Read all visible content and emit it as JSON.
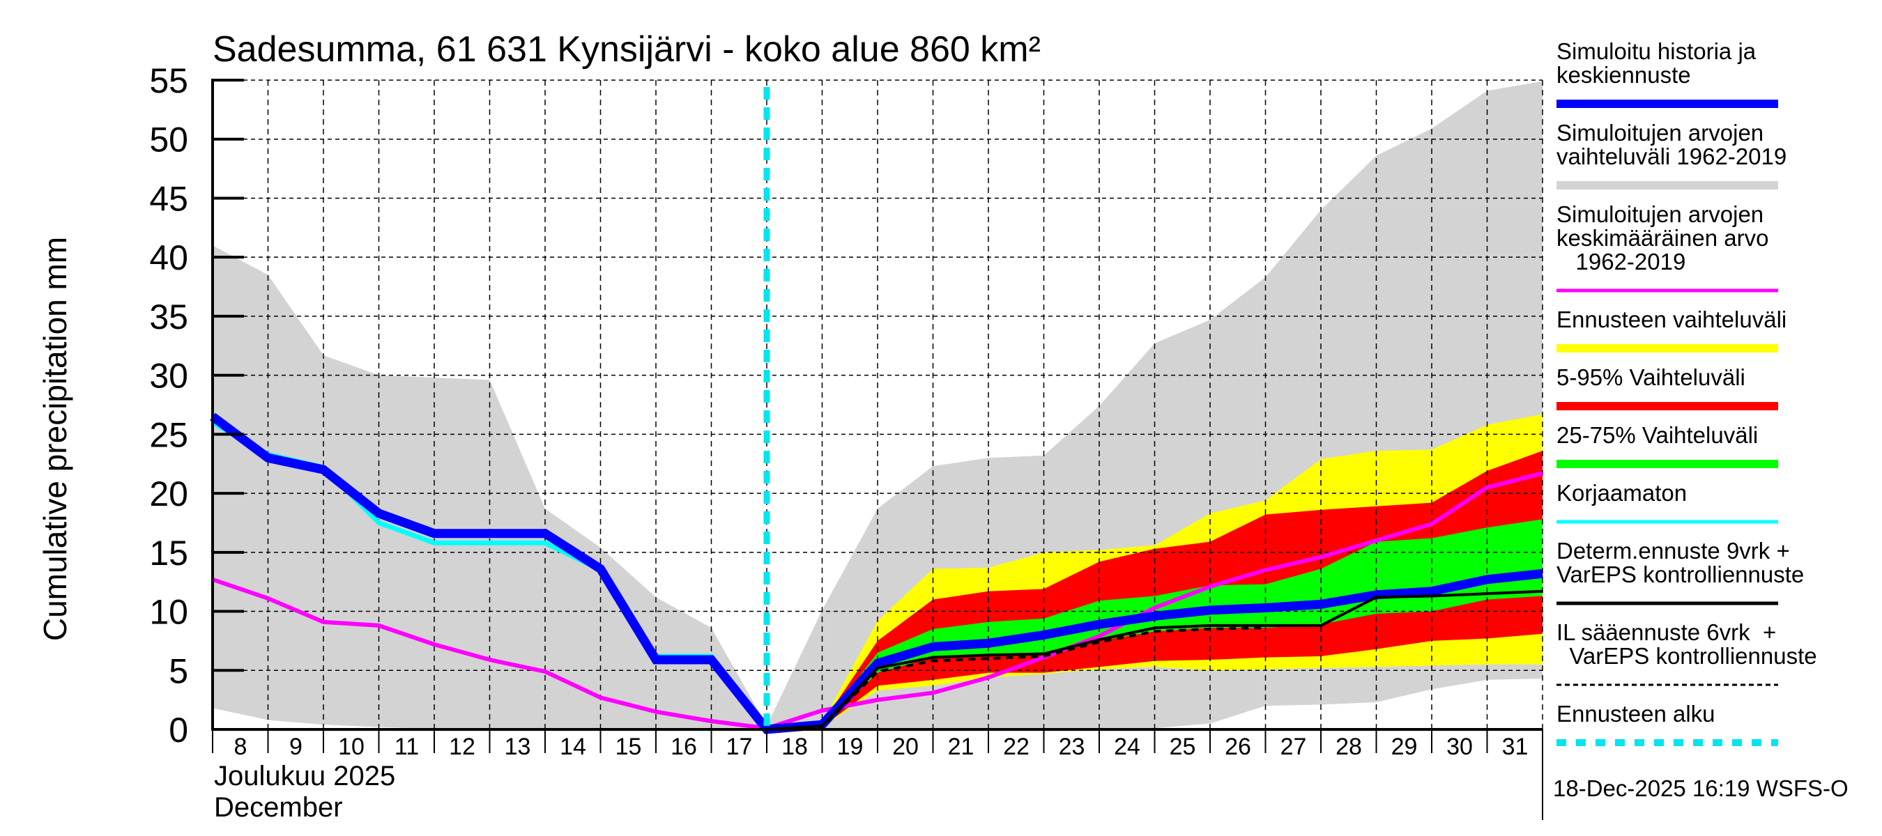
{
  "chart_data": {
    "type": "area",
    "title": "Sadesumma, 61 631 Kynsijärvi - koko alue 860 km²",
    "ylabel": "Cumulative precipitation   mm",
    "xlabel_line1": "Joulukuu  2025",
    "xlabel_line2": "December",
    "timestamp": "18-Dec-2025 16:19 WSFS-O",
    "ylim": [
      0,
      55
    ],
    "xlim": [
      8,
      32
    ],
    "yticks": [
      "0",
      "5",
      "10",
      "15",
      "20",
      "25",
      "30",
      "35",
      "40",
      "45",
      "50",
      "55"
    ],
    "xticks": [
      "8",
      "9",
      "10",
      "11",
      "12",
      "13",
      "14",
      "15",
      "16",
      "17",
      "18",
      "19",
      "20",
      "21",
      "22",
      "23",
      "24",
      "25",
      "26",
      "27",
      "28",
      "29",
      "30",
      "31"
    ],
    "forecast_start_day": 18,
    "grid": true,
    "legend_position": "right",
    "colors": {
      "sim_range": "#d3d3d3",
      "forecast_range": "#ffff00",
      "p5_95": "#ff0000",
      "p25_75": "#00ff00",
      "simulated": "#0000ff",
      "mean": "#ff00ff",
      "uncorrected": "#00ffff",
      "determ": "#000000",
      "il": "#000000",
      "forecast_start": "#00e5ee"
    },
    "legend": [
      {
        "key": "simulated",
        "label": "Simuloitu historia ja\nkeskiennuste",
        "style": "thick"
      },
      {
        "key": "sim_range",
        "label": "Simuloitujen arvojen\nvaihteluväli 1962-2019",
        "style": "band"
      },
      {
        "key": "mean",
        "label": "Simuloitujen arvojen\nkeskimääräinen arvo\n   1962-2019",
        "style": "line"
      },
      {
        "key": "forecast_range",
        "label": "Ennusteen vaihteluväli",
        "style": "band"
      },
      {
        "key": "p5_95",
        "label": "5-95% Vaihteluväli",
        "style": "band"
      },
      {
        "key": "p25_75",
        "label": "25-75% Vaihteluväli",
        "style": "band"
      },
      {
        "key": "uncorrected",
        "label": "Korjaamaton",
        "style": "line"
      },
      {
        "key": "determ",
        "label": "Determ.ennuste 9vrk +\nVarEPS kontrolliennuste",
        "style": "line"
      },
      {
        "key": "il",
        "label": "IL sääennuste 6vrk  +\n  VarEPS kontrolliennuste",
        "style": "dashed"
      },
      {
        "key": "forecast_start",
        "label": "Ennusteen alku",
        "style": "dotted"
      }
    ],
    "series": {
      "sim_range": {
        "x": [
          8,
          9,
          10,
          11,
          12,
          13,
          14,
          15,
          16,
          17,
          18,
          19,
          20,
          21,
          22,
          23,
          24,
          25,
          26,
          27,
          28,
          29,
          30,
          31,
          32
        ],
        "upper": [
          41.0,
          38.5,
          31.7,
          30.0,
          29.8,
          29.6,
          18.7,
          15.4,
          11.2,
          8.6,
          0.3,
          10.1,
          18.7,
          22.3,
          23.0,
          23.2,
          27.4,
          32.7,
          34.7,
          38.3,
          44.0,
          48.6,
          50.9,
          54.1,
          54.9
        ],
        "lower": [
          1.8,
          0.8,
          0.4,
          0.2,
          0.05,
          0,
          0,
          0,
          0,
          0,
          0,
          0,
          0,
          0,
          0,
          0,
          0,
          0.1,
          0.5,
          2.0,
          2.1,
          2.3,
          3.4,
          4.2,
          4.3
        ]
      },
      "forecast_range": {
        "x": [
          18,
          19,
          20,
          21,
          22,
          23,
          24,
          25,
          26,
          27,
          28,
          29,
          30,
          31,
          32
        ],
        "upper": [
          0,
          0.6,
          9.2,
          13.6,
          13.7,
          15.0,
          15.2,
          15.6,
          18.3,
          19.4,
          22.9,
          23.6,
          23.7,
          25.8,
          26.7
        ],
        "lower": [
          0,
          0.2,
          3.3,
          3.7,
          4.4,
          4.7,
          5.1,
          5.3,
          5.0,
          5.1,
          5.2,
          5.3,
          5.4,
          5.5,
          5.5
        ]
      },
      "p5_95": {
        "x": [
          18,
          19,
          20,
          21,
          22,
          23,
          24,
          25,
          26,
          27,
          28,
          29,
          30,
          31,
          32
        ],
        "upper": [
          0,
          0.5,
          7.5,
          11.0,
          11.7,
          11.9,
          14.2,
          15.3,
          15.9,
          18.2,
          18.6,
          18.9,
          19.2,
          21.9,
          23.6
        ],
        "lower": [
          0,
          0.2,
          3.7,
          4.2,
          4.8,
          4.8,
          5.3,
          5.8,
          5.9,
          6.1,
          6.2,
          6.8,
          7.5,
          7.7,
          8.1
        ]
      },
      "p25_75": {
        "x": [
          18,
          19,
          20,
          21,
          22,
          23,
          24,
          25,
          26,
          27,
          28,
          29,
          30,
          31,
          32
        ],
        "upper": [
          0,
          0.4,
          6.5,
          8.5,
          9.1,
          9.4,
          10.9,
          11.3,
          12.2,
          12.3,
          13.6,
          15.9,
          16.2,
          17.1,
          17.8
        ],
        "lower": [
          0,
          0.3,
          4.8,
          6.1,
          6.2,
          6.3,
          7.5,
          8.3,
          8.6,
          8.6,
          8.9,
          9.8,
          10.0,
          11.0,
          11.3
        ]
      },
      "simulated": {
        "x": [
          8,
          9,
          10,
          11,
          12,
          13,
          14,
          15,
          16,
          17,
          18,
          19,
          20,
          21,
          22,
          23,
          24,
          25,
          26,
          27,
          28,
          29,
          30,
          31,
          32
        ],
        "y": [
          26.5,
          23.0,
          22.0,
          18.3,
          16.6,
          16.6,
          16.6,
          13.6,
          5.9,
          5.9,
          0,
          0.4,
          5.6,
          7.0,
          7.3,
          8.0,
          8.9,
          9.6,
          10.1,
          10.3,
          10.6,
          11.4,
          11.7,
          12.7,
          13.2
        ]
      },
      "uncorrected": {
        "x": [
          8,
          9,
          10,
          11,
          12,
          13,
          14,
          15,
          16,
          17,
          18
        ],
        "y": [
          26.0,
          23.3,
          22.2,
          17.5,
          15.8,
          15.8,
          15.8,
          13.5,
          6.2,
          6.2,
          0
        ]
      },
      "mean": {
        "x": [
          8,
          9,
          10,
          11,
          12,
          13,
          14,
          15,
          16,
          17,
          18,
          19,
          20,
          21,
          22,
          23,
          24,
          25,
          26,
          27,
          28,
          29,
          30,
          31,
          32
        ],
        "y": [
          12.7,
          11.1,
          9.1,
          8.8,
          7.2,
          5.9,
          4.9,
          2.7,
          1.5,
          0.7,
          0.1,
          1.6,
          2.5,
          3.1,
          4.4,
          6.1,
          7.9,
          10.3,
          12.1,
          13.5,
          14.6,
          16.0,
          17.4,
          20.5,
          21.7
        ]
      },
      "determ": {
        "x": [
          18,
          19,
          20,
          21,
          22,
          23,
          24,
          25,
          26,
          27,
          28,
          29,
          30,
          31,
          32
        ],
        "y": [
          0,
          0.3,
          5.2,
          6.1,
          6.3,
          6.4,
          7.6,
          8.6,
          8.8,
          8.8,
          8.8,
          11.2,
          11.3,
          11.5,
          11.7
        ]
      },
      "il": {
        "x": [
          18,
          19,
          20,
          21,
          22,
          23,
          24,
          25,
          26,
          27
        ],
        "y": [
          0,
          0.2,
          4.9,
          5.8,
          6.0,
          6.2,
          7.4,
          8.3,
          8.5,
          8.6
        ]
      }
    }
  }
}
